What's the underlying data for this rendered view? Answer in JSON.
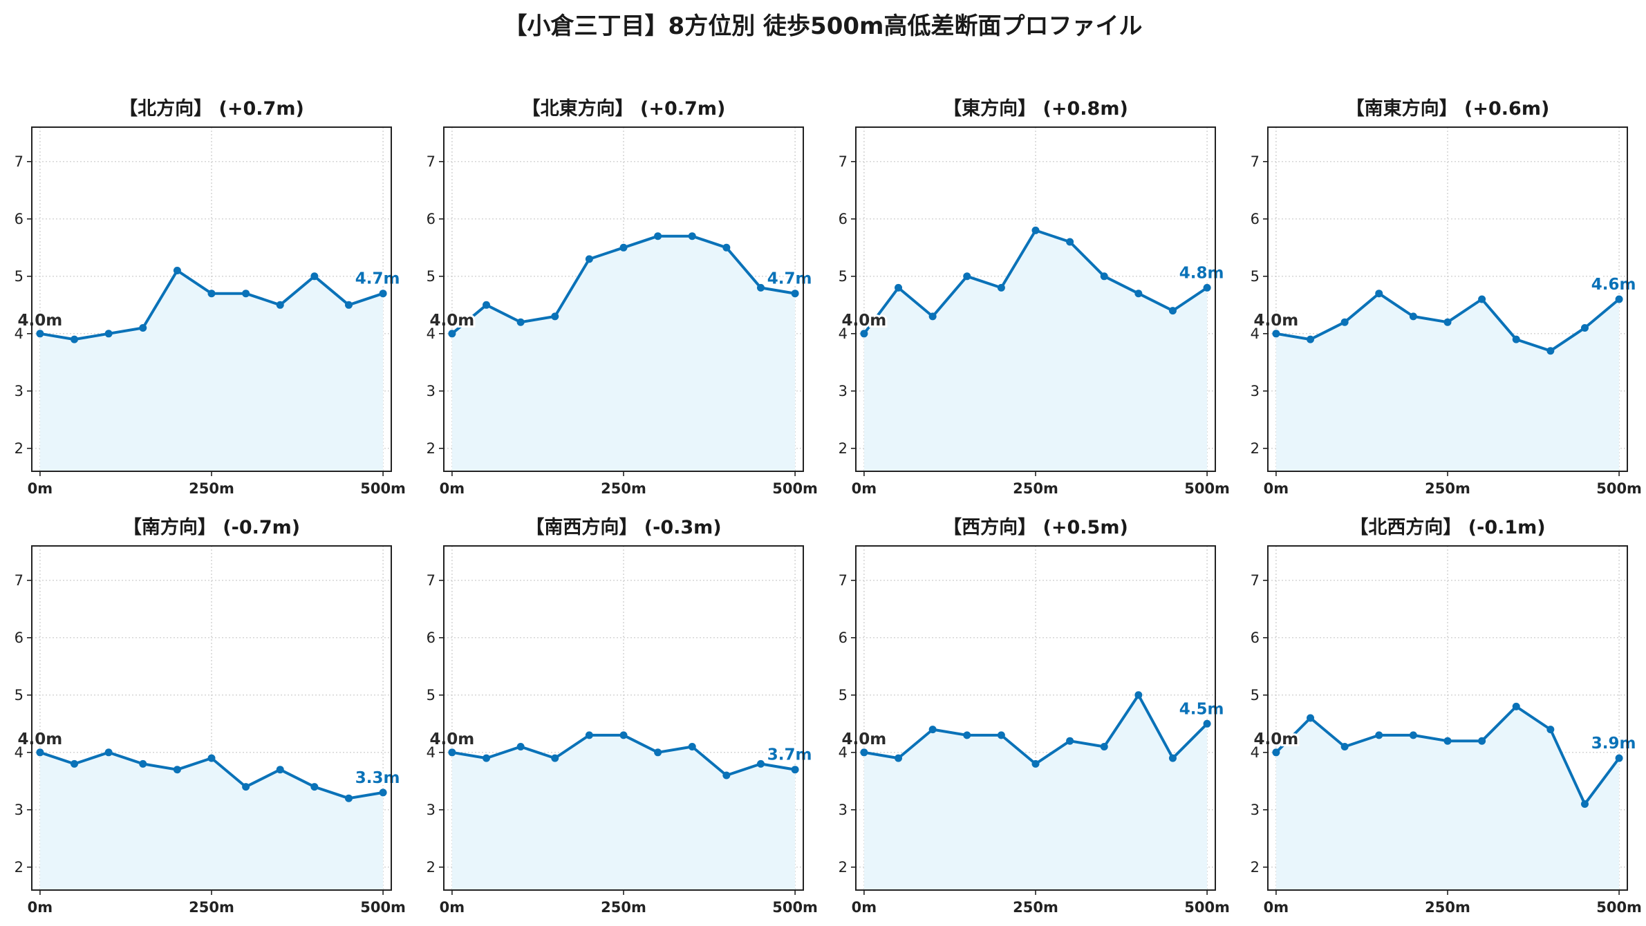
{
  "title": "【小倉三丁目】8方位別 徒歩500m高低差断面プロファイル",
  "colors": {
    "line": "#0a72b8",
    "fill": "#e9f6fc",
    "grid": "#c8c8c8",
    "start_label": "#2b2b2b",
    "end_label": "#0a72b8"
  },
  "chart_data": [
    {
      "type": "area",
      "title": "【北方向】 (+0.7m)",
      "x": [
        0,
        50,
        100,
        150,
        200,
        250,
        300,
        350,
        400,
        450,
        500
      ],
      "xticks": [
        "0m",
        "250m",
        "500m"
      ],
      "xtick_values": [
        0,
        250,
        500
      ],
      "yticks": [
        2,
        3,
        4,
        5,
        6,
        7
      ],
      "ylim": [
        1.6,
        7.6
      ],
      "xlim": [
        -12,
        512
      ],
      "grid": true,
      "values": [
        4.0,
        3.9,
        4.0,
        4.1,
        5.1,
        4.7,
        4.7,
        4.5,
        5.0,
        4.5,
        4.7
      ],
      "start_label": "4.0m",
      "end_label": "4.7m"
    },
    {
      "type": "area",
      "title": "【北東方向】 (+0.7m)",
      "x": [
        0,
        50,
        100,
        150,
        200,
        250,
        300,
        350,
        400,
        450,
        500
      ],
      "xticks": [
        "0m",
        "250m",
        "500m"
      ],
      "xtick_values": [
        0,
        250,
        500
      ],
      "yticks": [
        2,
        3,
        4,
        5,
        6,
        7
      ],
      "ylim": [
        1.6,
        7.6
      ],
      "xlim": [
        -12,
        512
      ],
      "grid": true,
      "values": [
        4.0,
        4.5,
        4.2,
        4.3,
        5.3,
        5.5,
        5.7,
        5.7,
        5.5,
        4.8,
        4.7
      ],
      "start_label": "4.0m",
      "end_label": "4.7m"
    },
    {
      "type": "area",
      "title": "【東方向】 (+0.8m)",
      "x": [
        0,
        50,
        100,
        150,
        200,
        250,
        300,
        350,
        400,
        450,
        500
      ],
      "xticks": [
        "0m",
        "250m",
        "500m"
      ],
      "xtick_values": [
        0,
        250,
        500
      ],
      "yticks": [
        2,
        3,
        4,
        5,
        6,
        7
      ],
      "ylim": [
        1.6,
        7.6
      ],
      "xlim": [
        -12,
        512
      ],
      "grid": true,
      "values": [
        4.0,
        4.8,
        4.3,
        5.0,
        4.8,
        5.8,
        5.6,
        5.0,
        4.7,
        4.4,
        4.8
      ],
      "start_label": "4.0m",
      "end_label": "4.8m"
    },
    {
      "type": "area",
      "title": "【南東方向】 (+0.6m)",
      "x": [
        0,
        50,
        100,
        150,
        200,
        250,
        300,
        350,
        400,
        450,
        500
      ],
      "xticks": [
        "0m",
        "250m",
        "500m"
      ],
      "xtick_values": [
        0,
        250,
        500
      ],
      "yticks": [
        2,
        3,
        4,
        5,
        6,
        7
      ],
      "ylim": [
        1.6,
        7.6
      ],
      "xlim": [
        -12,
        512
      ],
      "grid": true,
      "values": [
        4.0,
        3.9,
        4.2,
        4.7,
        4.3,
        4.2,
        4.6,
        3.9,
        3.7,
        4.1,
        4.6
      ],
      "start_label": "4.0m",
      "end_label": "4.6m"
    },
    {
      "type": "area",
      "title": "【南方向】 (-0.7m)",
      "x": [
        0,
        50,
        100,
        150,
        200,
        250,
        300,
        350,
        400,
        450,
        500
      ],
      "xticks": [
        "0m",
        "250m",
        "500m"
      ],
      "xtick_values": [
        0,
        250,
        500
      ],
      "yticks": [
        2,
        3,
        4,
        5,
        6,
        7
      ],
      "ylim": [
        1.6,
        7.6
      ],
      "xlim": [
        -12,
        512
      ],
      "grid": true,
      "values": [
        4.0,
        3.8,
        4.0,
        3.8,
        3.7,
        3.9,
        3.4,
        3.7,
        3.4,
        3.2,
        3.3
      ],
      "start_label": "4.0m",
      "end_label": "3.3m"
    },
    {
      "type": "area",
      "title": "【南西方向】 (-0.3m)",
      "x": [
        0,
        50,
        100,
        150,
        200,
        250,
        300,
        350,
        400,
        450,
        500
      ],
      "xticks": [
        "0m",
        "250m",
        "500m"
      ],
      "xtick_values": [
        0,
        250,
        500
      ],
      "yticks": [
        2,
        3,
        4,
        5,
        6,
        7
      ],
      "ylim": [
        1.6,
        7.6
      ],
      "xlim": [
        -12,
        512
      ],
      "grid": true,
      "values": [
        4.0,
        3.9,
        4.1,
        3.9,
        4.3,
        4.3,
        4.0,
        4.1,
        3.6,
        3.8,
        3.7
      ],
      "start_label": "4.0m",
      "end_label": "3.7m"
    },
    {
      "type": "area",
      "title": "【西方向】 (+0.5m)",
      "x": [
        0,
        50,
        100,
        150,
        200,
        250,
        300,
        350,
        400,
        450,
        500
      ],
      "xticks": [
        "0m",
        "250m",
        "500m"
      ],
      "xtick_values": [
        0,
        250,
        500
      ],
      "yticks": [
        2,
        3,
        4,
        5,
        6,
        7
      ],
      "ylim": [
        1.6,
        7.6
      ],
      "xlim": [
        -12,
        512
      ],
      "grid": true,
      "values": [
        4.0,
        3.9,
        4.4,
        4.3,
        4.3,
        3.8,
        4.2,
        4.1,
        5.0,
        3.9,
        4.5
      ],
      "start_label": "4.0m",
      "end_label": "4.5m"
    },
    {
      "type": "area",
      "title": "【北西方向】 (-0.1m)",
      "x": [
        0,
        50,
        100,
        150,
        200,
        250,
        300,
        350,
        400,
        450,
        500
      ],
      "xticks": [
        "0m",
        "250m",
        "500m"
      ],
      "xtick_values": [
        0,
        250,
        500
      ],
      "yticks": [
        2,
        3,
        4,
        5,
        6,
        7
      ],
      "ylim": [
        1.6,
        7.6
      ],
      "xlim": [
        -12,
        512
      ],
      "grid": true,
      "values": [
        4.0,
        4.6,
        4.1,
        4.3,
        4.3,
        4.2,
        4.2,
        4.8,
        4.4,
        3.1,
        3.9
      ],
      "start_label": "4.0m",
      "end_label": "3.9m"
    }
  ]
}
